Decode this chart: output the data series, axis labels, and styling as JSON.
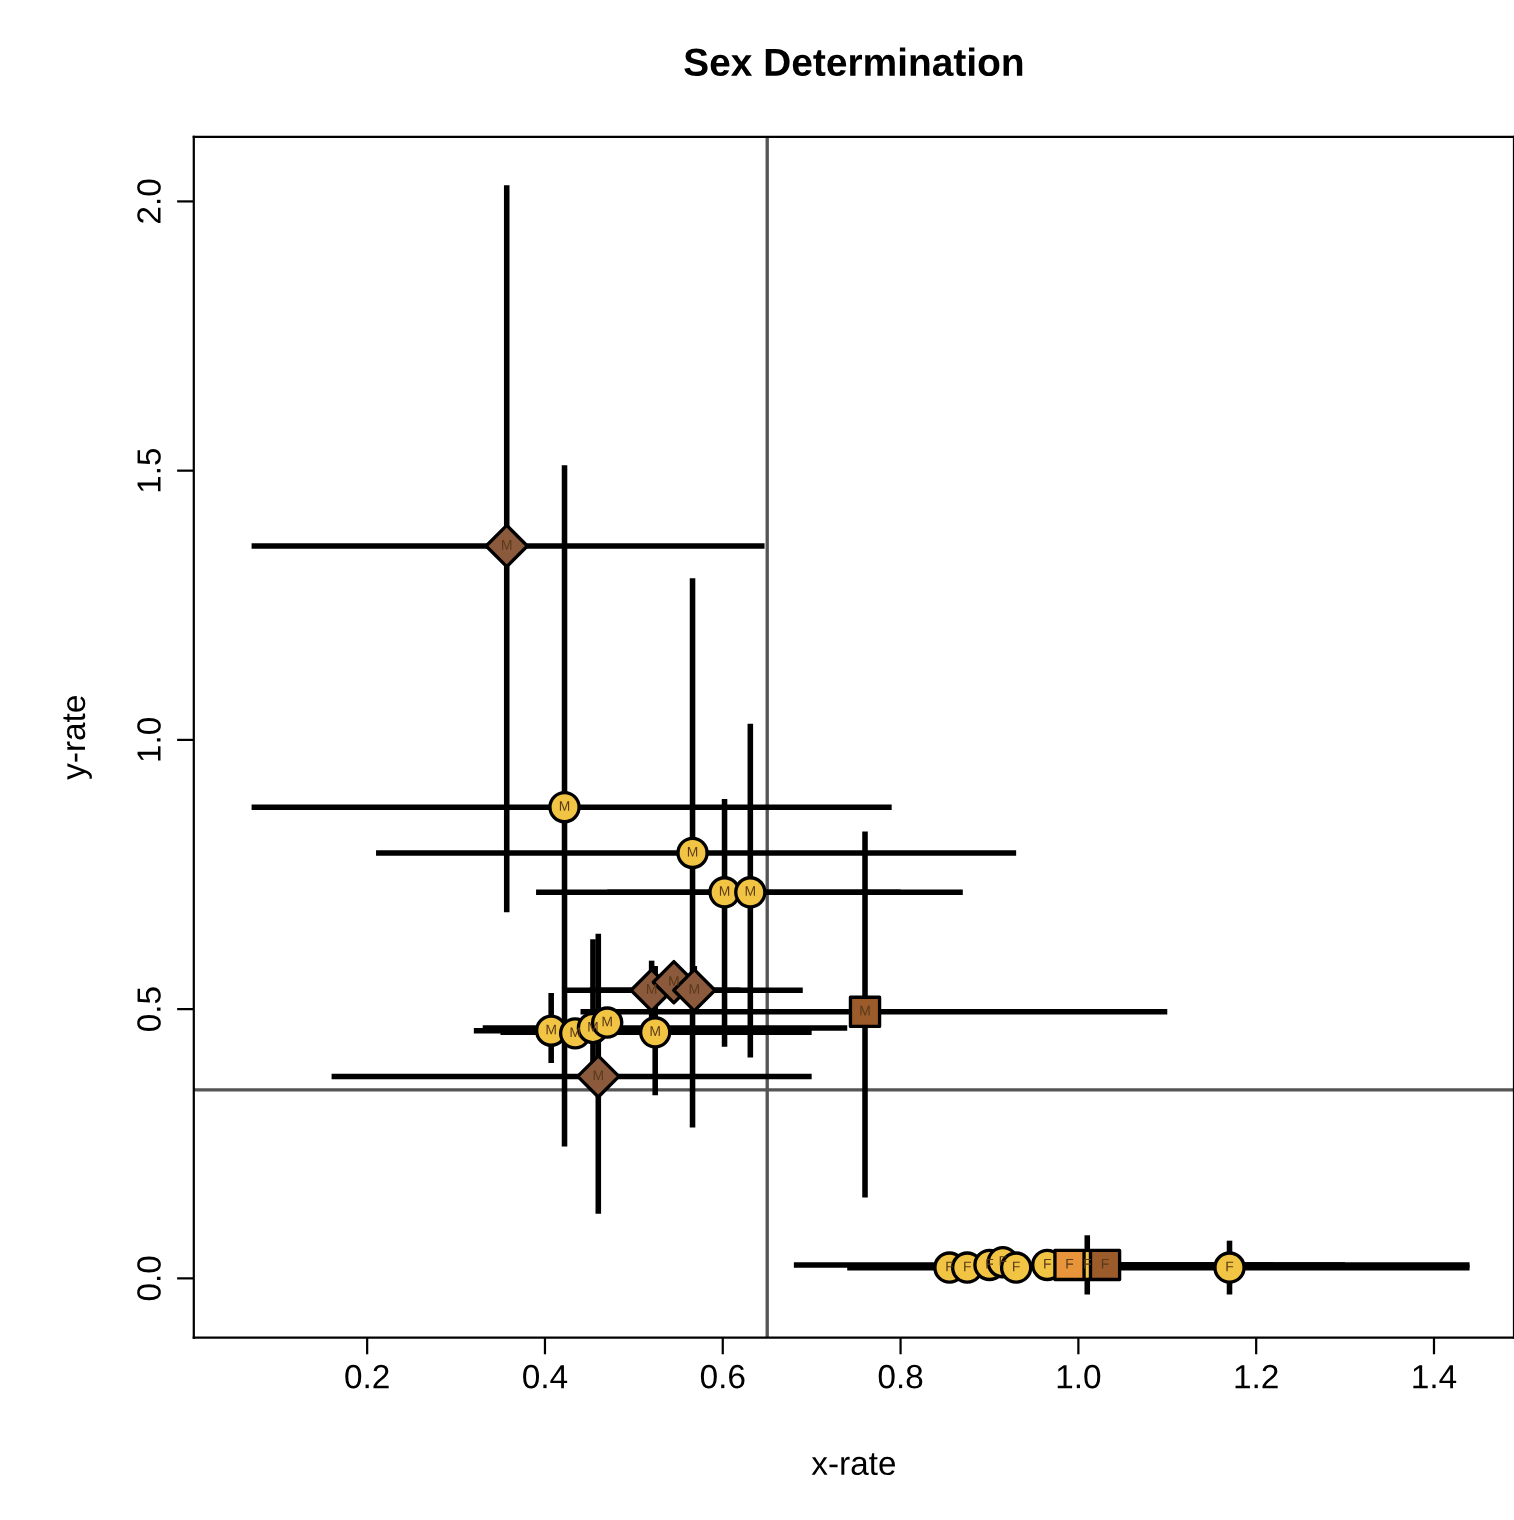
{
  "chart_data": {
    "type": "scatter",
    "title": "Sex Determination",
    "xlabel": "x-rate",
    "ylabel": "y-rate",
    "xlim": [
      0.005,
      1.49
    ],
    "ylim": [
      -0.11,
      2.12
    ],
    "xticks": [
      0.2,
      0.4,
      0.6,
      0.8,
      {
        "value": 1,
        "label": "1.0"
      },
      1.2,
      1.4
    ],
    "yticks": [
      {
        "value": 0,
        "label": "0.0"
      },
      {
        "value": 0.5,
        "label": "0.5"
      },
      {
        "value": 1,
        "label": "1.0"
      },
      {
        "value": 1.5,
        "label": "1.5"
      },
      {
        "value": 2,
        "label": "2.0"
      }
    ],
    "grid": false,
    "legend": false,
    "ref_lines": [
      {
        "axis": "x",
        "value": 0.65,
        "color": "#555555"
      },
      {
        "axis": "y",
        "value": 0.35,
        "color": "#555555"
      }
    ],
    "series": [
      {
        "marker": "circle",
        "color": "#f2c443",
        "x": [
          0.422,
          0.566,
          0.602,
          0.631,
          0.407,
          0.434,
          0.454,
          0.47,
          0.524
        ],
        "values": [
          0.875,
          0.79,
          0.717,
          0.717,
          0.46,
          0.455,
          0.465,
          0.475,
          0.457
        ],
        "xerrors": [
          [
            0.07,
            0.79
          ],
          [
            0.21,
            0.93
          ],
          [
            0.39,
            0.87
          ],
          [
            0.47,
            0.8
          ],
          [
            0.32,
            0.57
          ],
          null,
          [
            0.33,
            0.74
          ],
          null,
          [
            0.35,
            0.7
          ]
        ],
        "errors": [
          [
            0.245,
            1.51
          ],
          [
            0.28,
            1.3
          ],
          [
            0.43,
            0.89
          ],
          [
            0.41,
            1.03
          ],
          [
            0.4,
            0.53
          ],
          null,
          [
            0.38,
            0.63
          ],
          null,
          [
            0.34,
            0.58
          ]
        ],
        "value_labels": [
          "M",
          "M",
          "M",
          "M",
          "M",
          "M",
          "M",
          "M",
          "M"
        ]
      },
      {
        "marker": "diamond",
        "color": "#8b5a3c",
        "x": [
          0.357,
          0.52,
          0.545,
          0.568,
          0.46
        ],
        "values": [
          1.36,
          0.535,
          0.55,
          0.535,
          0.375
        ],
        "xerrors": [
          [
            0.07,
            0.647
          ],
          [
            0.42,
            0.69
          ],
          null,
          [
            0.45,
            0.62
          ],
          [
            0.16,
            0.7
          ]
        ],
        "errors": [
          [
            0.68,
            2.03
          ],
          [
            0.48,
            0.59
          ],
          null,
          [
            0.5,
            0.58
          ],
          [
            0.12,
            0.64
          ]
        ],
        "value_labels": [
          "M",
          "M",
          "M",
          "M",
          "M"
        ]
      },
      {
        "marker": "square",
        "color": "#9c5b2a",
        "x": [
          0.76
        ],
        "values": [
          0.495
        ],
        "xerrors": [
          [
            0.44,
            1.1
          ]
        ],
        "errors": [
          [
            0.15,
            0.83
          ]
        ],
        "value_labels": [
          "M"
        ]
      },
      {
        "marker": "circle",
        "color": "#f2c443",
        "x": [
          0.855,
          0.875,
          0.9,
          0.915,
          0.93,
          0.965,
          1.01,
          1.17
        ],
        "values": [
          0.02,
          0.02,
          0.025,
          0.03,
          0.02,
          0.025,
          0.025,
          0.02
        ],
        "xerrors": [
          null,
          null,
          null,
          null,
          null,
          null,
          [
            0.85,
            1.3
          ],
          [
            0.74,
            1.44
          ]
        ],
        "errors": [
          null,
          null,
          null,
          null,
          null,
          null,
          [
            -0.03,
            0.08
          ],
          [
            -0.03,
            0.07
          ]
        ],
        "value_labels": [
          "F",
          "F",
          "F",
          "F",
          "F",
          "F",
          "F",
          "F"
        ]
      },
      {
        "marker": "square",
        "color": "#e8943a",
        "x": [
          0.99
        ],
        "values": [
          0.025
        ],
        "xerrors": [
          [
            0.87,
            1.22
          ]
        ],
        "errors": [
          null
        ],
        "value_labels": [
          "F"
        ]
      },
      {
        "marker": "square",
        "color": "#9c5b2a",
        "x": [
          1.03
        ],
        "values": [
          0.025
        ],
        "xerrors": [
          [
            0.68,
            1.44
          ]
        ],
        "errors": [
          null
        ],
        "value_labels": [
          "F"
        ]
      }
    ]
  }
}
